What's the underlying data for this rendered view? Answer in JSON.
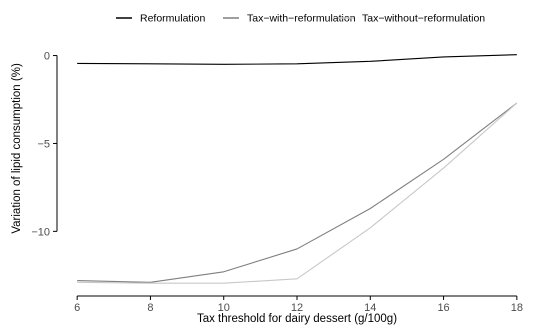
{
  "chart_data": {
    "type": "line",
    "title": "",
    "xlabel": "Tax threshold for dairy dessert (g/100g)",
    "ylabel": "Variation of lipid consumption (%)",
    "x": [
      6,
      8,
      10,
      12,
      14,
      16,
      18
    ],
    "x_ticks": [
      6,
      8,
      10,
      12,
      14,
      16,
      18
    ],
    "y_ticks": [
      0,
      -5,
      -10
    ],
    "xlim": [
      5.45,
      18.55
    ],
    "ylim": [
      -13.45,
      0.6
    ],
    "grid": false,
    "legend_position": "top",
    "series": [
      {
        "name": "Reformulation",
        "color": "#000000",
        "values": [
          -0.45,
          -0.47,
          -0.5,
          -0.47,
          -0.33,
          -0.08,
          0.05
        ]
      },
      {
        "name": "Tax−with−reformulation",
        "color": "#7f7f7f",
        "values": [
          -12.8,
          -12.9,
          -12.3,
          -11.0,
          -8.7,
          -5.9,
          -2.7
        ]
      },
      {
        "name": "Tax−without−reformulation",
        "color": "#c8c8c8",
        "values": [
          -12.9,
          -12.95,
          -12.95,
          -12.7,
          -9.8,
          -6.4,
          -2.7
        ]
      }
    ]
  }
}
